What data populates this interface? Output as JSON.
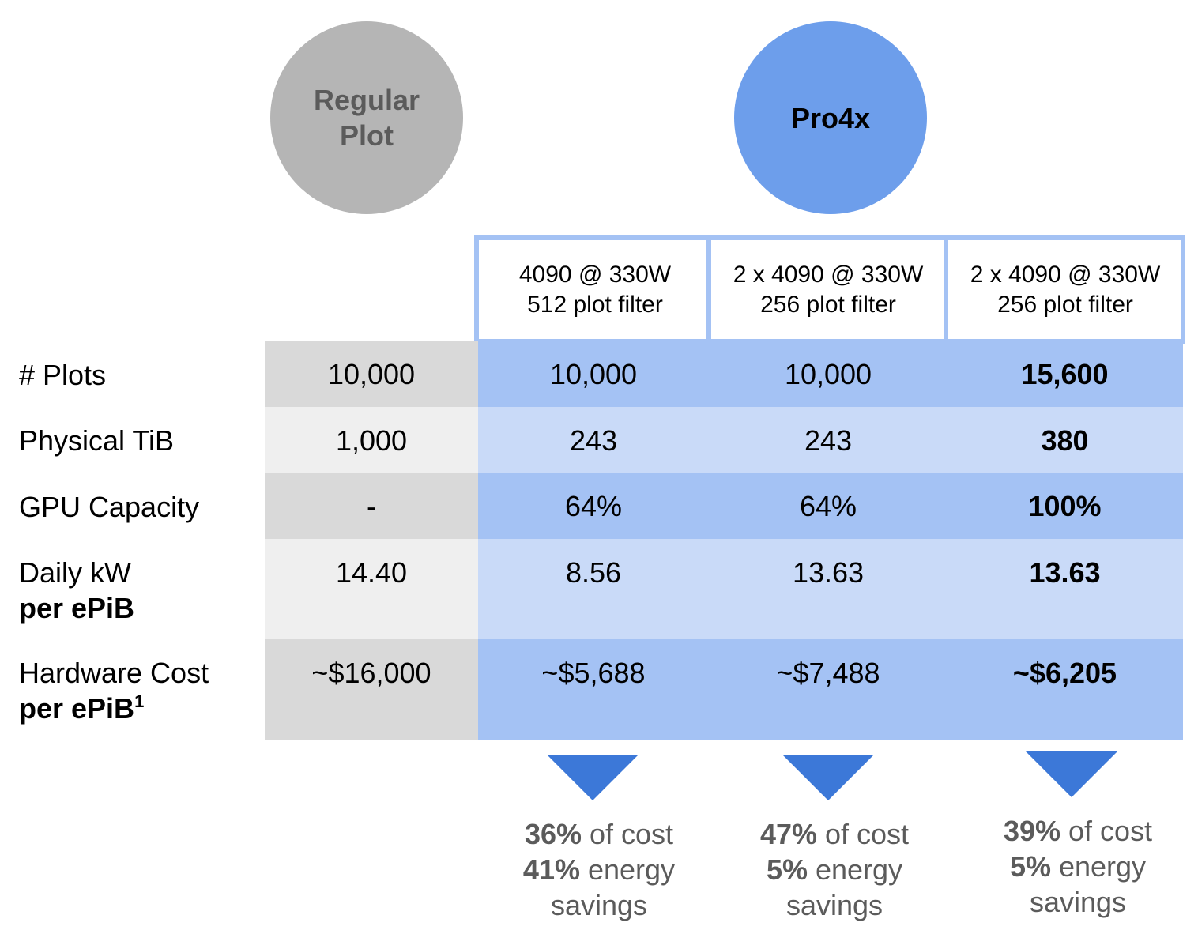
{
  "circles": {
    "regular": "Regular Plot",
    "pro": "Pro4x"
  },
  "configs": [
    {
      "line1": "4090 @ 330W",
      "line2": "512 plot filter"
    },
    {
      "line1": "2 x 4090 @ 330W",
      "line2": "256 plot filter"
    },
    {
      "line1": "2 x 4090 @ 330W",
      "line2": "256 plot filter"
    }
  ],
  "rows": [
    {
      "label": "# Plots",
      "label_bold": "",
      "values": [
        "10,000",
        "10,000",
        "10,000",
        "15,600"
      ]
    },
    {
      "label": "Physical TiB",
      "label_bold": "",
      "values": [
        "1,000",
        "243",
        "243",
        "380"
      ]
    },
    {
      "label": "GPU Capacity",
      "label_bold": "",
      "values": [
        "-",
        "64%",
        "64%",
        "100%"
      ]
    },
    {
      "label": "Daily kW",
      "label_bold": "per ePiB",
      "values": [
        "14.40",
        "8.56",
        "13.63",
        "13.63"
      ]
    },
    {
      "label": "Hardware Cost",
      "label_bold": "per ePiB",
      "footnote": "1",
      "values": [
        "~$16,000",
        "~$5,688",
        "~$7,488",
        "~$6,205"
      ]
    }
  ],
  "savings": [
    {
      "cost_pct": "36%",
      "cost_text": " of cost",
      "energy_pct": "41%",
      "energy_text": " energy",
      "tail": "savings"
    },
    {
      "cost_pct": "47%",
      "cost_text": " of cost",
      "energy_pct": "5%",
      "energy_text": " energy",
      "tail": "savings"
    },
    {
      "cost_pct": "39%",
      "cost_text": " of cost",
      "energy_pct": "5%",
      "energy_text": " energy",
      "tail": "savings"
    }
  ],
  "colors": {
    "gray_dark_cell": "#d9d9d9",
    "gray_light_cell": "#efefef",
    "blue_dark_cell": "#a4c2f4",
    "blue_light_cell": "#c9daf8",
    "arrow": "#3c78d8",
    "regular_circle": "#b5b5b5",
    "pro_circle": "#6d9eeb"
  }
}
